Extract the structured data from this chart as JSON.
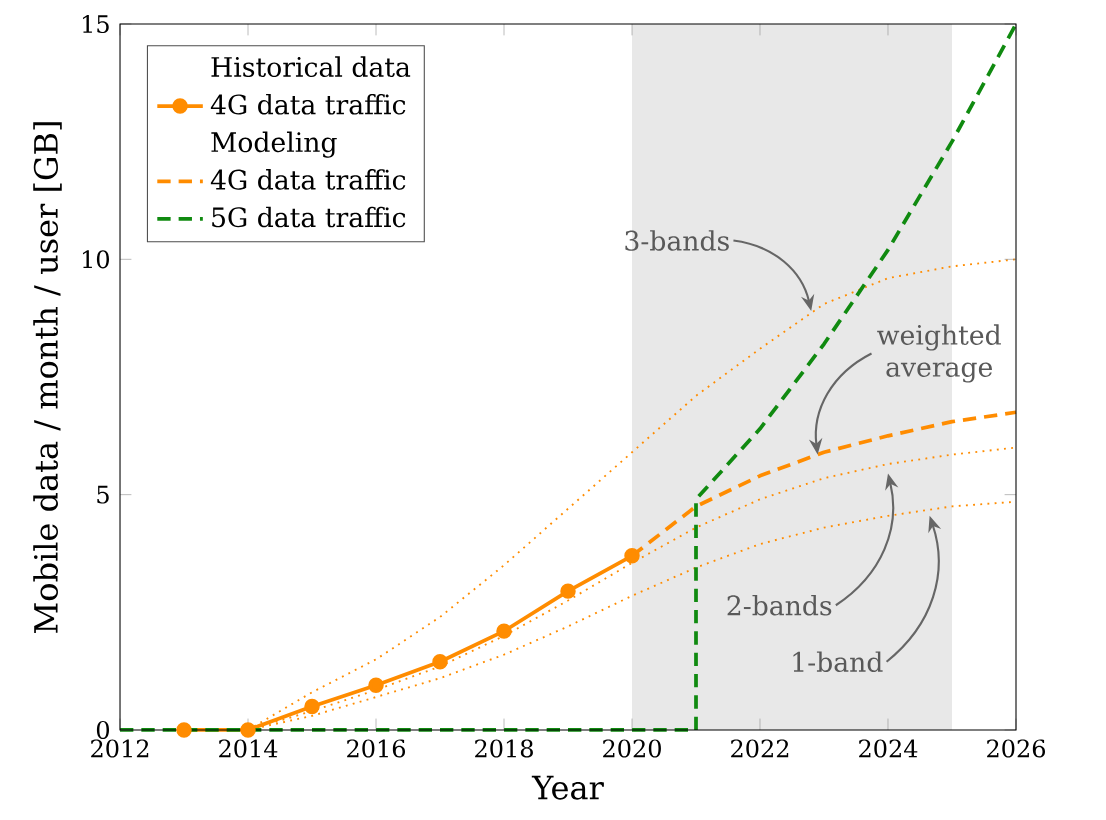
{
  "chart_data": {
    "type": "line",
    "xlabel": "Year",
    "ylabel": "Mobile data / month / user [GB]",
    "legend_title": "Historical data",
    "xlim": [
      2012,
      2026
    ],
    "xticks": [
      2012,
      2014,
      2016,
      2018,
      2020,
      2022,
      2024,
      2026
    ],
    "ylim": [
      0,
      15
    ],
    "yticks": [
      0,
      5,
      10,
      15
    ],
    "grid": false,
    "legend": "top left",
    "marker": "none",
    "bands": [
      {
        "axis": "x",
        "from": 2020,
        "to": 2025,
        "color": "#e8e8e8"
      }
    ],
    "annotations": [
      {
        "text": "3-bands",
        "x": 2022.8,
        "y": 8.9
      },
      {
        "text": "weighted average",
        "x": 2022.9,
        "y": 5.85
      },
      {
        "text": "2-bands",
        "x": 2024.0,
        "y": 5.45
      },
      {
        "text": "1-band",
        "x": 2024.65,
        "y": 4.55
      },
      "Modeling"
    ],
    "series": [
      {
        "name": "4G data traffic",
        "color": "#ff8c00",
        "marker": "circle",
        "line_style": "solid",
        "x": [
          2013,
          2014,
          2015,
          2016,
          2017,
          2018,
          2019,
          2020
        ],
        "values": [
          0,
          0,
          0.5,
          0.95,
          1.45,
          2.1,
          2.95,
          3.7
        ]
      },
      {
        "name": "4G data traffic",
        "color": "#ff8c00",
        "line_style": "dashed",
        "x": [
          2020,
          2021,
          2022,
          2023,
          2024,
          2025,
          2026
        ],
        "values": [
          3.7,
          4.75,
          5.4,
          5.9,
          6.25,
          6.55,
          6.75
        ]
      },
      {
        "name": "5G data traffic",
        "color": "#108a10",
        "line_style": "dashed",
        "x": [
          2012,
          2021,
          2021,
          2022,
          2023,
          2024,
          2025,
          2026
        ],
        "values": [
          0,
          0,
          4.9,
          6.4,
          8.2,
          10.2,
          12.5,
          15
        ]
      },
      {
        "color": "#ff8c00",
        "line_style": "dotted",
        "x": [
          2014,
          2015,
          2016,
          2017,
          2018,
          2019,
          2020,
          2021,
          2022,
          2023,
          2024,
          2025,
          2026
        ],
        "values": [
          0,
          0.8,
          1.5,
          2.4,
          3.5,
          4.7,
          5.9,
          7.1,
          8.1,
          9.05,
          9.6,
          9.85,
          10.0
        ]
      },
      {
        "color": "#ff8c00",
        "line_style": "dotted",
        "x": [
          2014,
          2015,
          2016,
          2017,
          2018,
          2019,
          2020,
          2021,
          2022,
          2023,
          2024,
          2025,
          2026
        ],
        "values": [
          0,
          0.4,
          0.85,
          1.35,
          2.0,
          2.75,
          3.55,
          4.3,
          4.9,
          5.35,
          5.65,
          5.85,
          6.0
        ]
      },
      {
        "color": "#ff8c00",
        "line_style": "dotted",
        "x": [
          2014,
          2015,
          2016,
          2017,
          2018,
          2019,
          2020,
          2021,
          2022,
          2023,
          2024,
          2025,
          2026
        ],
        "values": [
          0,
          0.3,
          0.7,
          1.1,
          1.6,
          2.2,
          2.85,
          3.45,
          3.95,
          4.3,
          4.55,
          4.75,
          4.85
        ]
      }
    ]
  }
}
